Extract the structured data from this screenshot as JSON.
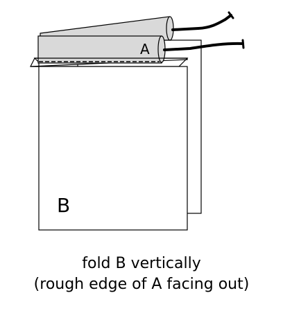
{
  "diagram": {
    "panel_a_label": "A",
    "panel_b_label": "B",
    "colors": {
      "stroke": "#000000",
      "paper": "#ffffff",
      "panel_a_fill": "#d9d9d9",
      "cord": "#000000"
    }
  },
  "caption": {
    "line1": "fold B vertically",
    "line2": "(rough edge of A facing out)"
  }
}
